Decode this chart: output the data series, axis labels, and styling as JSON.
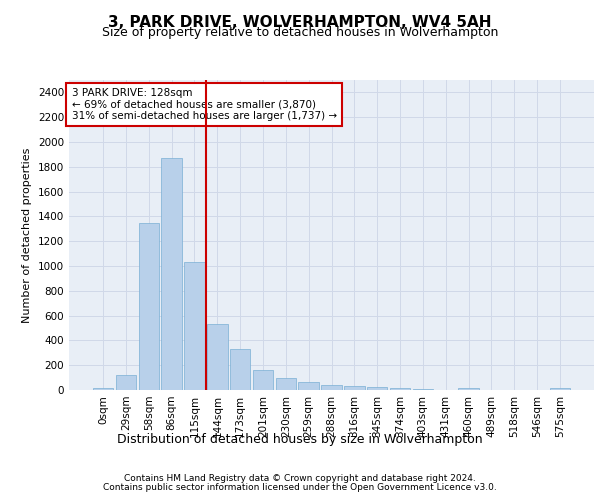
{
  "title1": "3, PARK DRIVE, WOLVERHAMPTON, WV4 5AH",
  "title2": "Size of property relative to detached houses in Wolverhampton",
  "xlabel": "Distribution of detached houses by size in Wolverhampton",
  "ylabel": "Number of detached properties",
  "bar_labels": [
    "0sqm",
    "29sqm",
    "58sqm",
    "86sqm",
    "115sqm",
    "144sqm",
    "173sqm",
    "201sqm",
    "230sqm",
    "259sqm",
    "288sqm",
    "316sqm",
    "345sqm",
    "374sqm",
    "403sqm",
    "431sqm",
    "460sqm",
    "489sqm",
    "518sqm",
    "546sqm",
    "575sqm"
  ],
  "bar_values": [
    15,
    125,
    1350,
    1875,
    1030,
    535,
    330,
    160,
    100,
    65,
    40,
    30,
    28,
    20,
    5,
    0,
    20,
    0,
    0,
    0,
    15
  ],
  "bar_color": "#b8d0ea",
  "bar_edgecolor": "#7aafd4",
  "vline_color": "#cc0000",
  "vline_index": 4,
  "ylim": [
    0,
    2500
  ],
  "yticks": [
    0,
    200,
    400,
    600,
    800,
    1000,
    1200,
    1400,
    1600,
    1800,
    2000,
    2200,
    2400
  ],
  "annotation_title": "3 PARK DRIVE: 128sqm",
  "annotation_line1": "← 69% of detached houses are smaller (3,870)",
  "annotation_line2": "31% of semi-detached houses are larger (1,737) →",
  "annotation_box_color": "#cc0000",
  "footer1": "Contains HM Land Registry data © Crown copyright and database right 2024.",
  "footer2": "Contains public sector information licensed under the Open Government Licence v3.0.",
  "grid_color": "#d0d8e8",
  "bg_color": "#e8eef6",
  "title1_fontsize": 11,
  "title2_fontsize": 9,
  "ylabel_fontsize": 8,
  "xlabel_fontsize": 9,
  "tick_fontsize": 7.5,
  "ann_fontsize": 7.5,
  "footer_fontsize": 6.5
}
